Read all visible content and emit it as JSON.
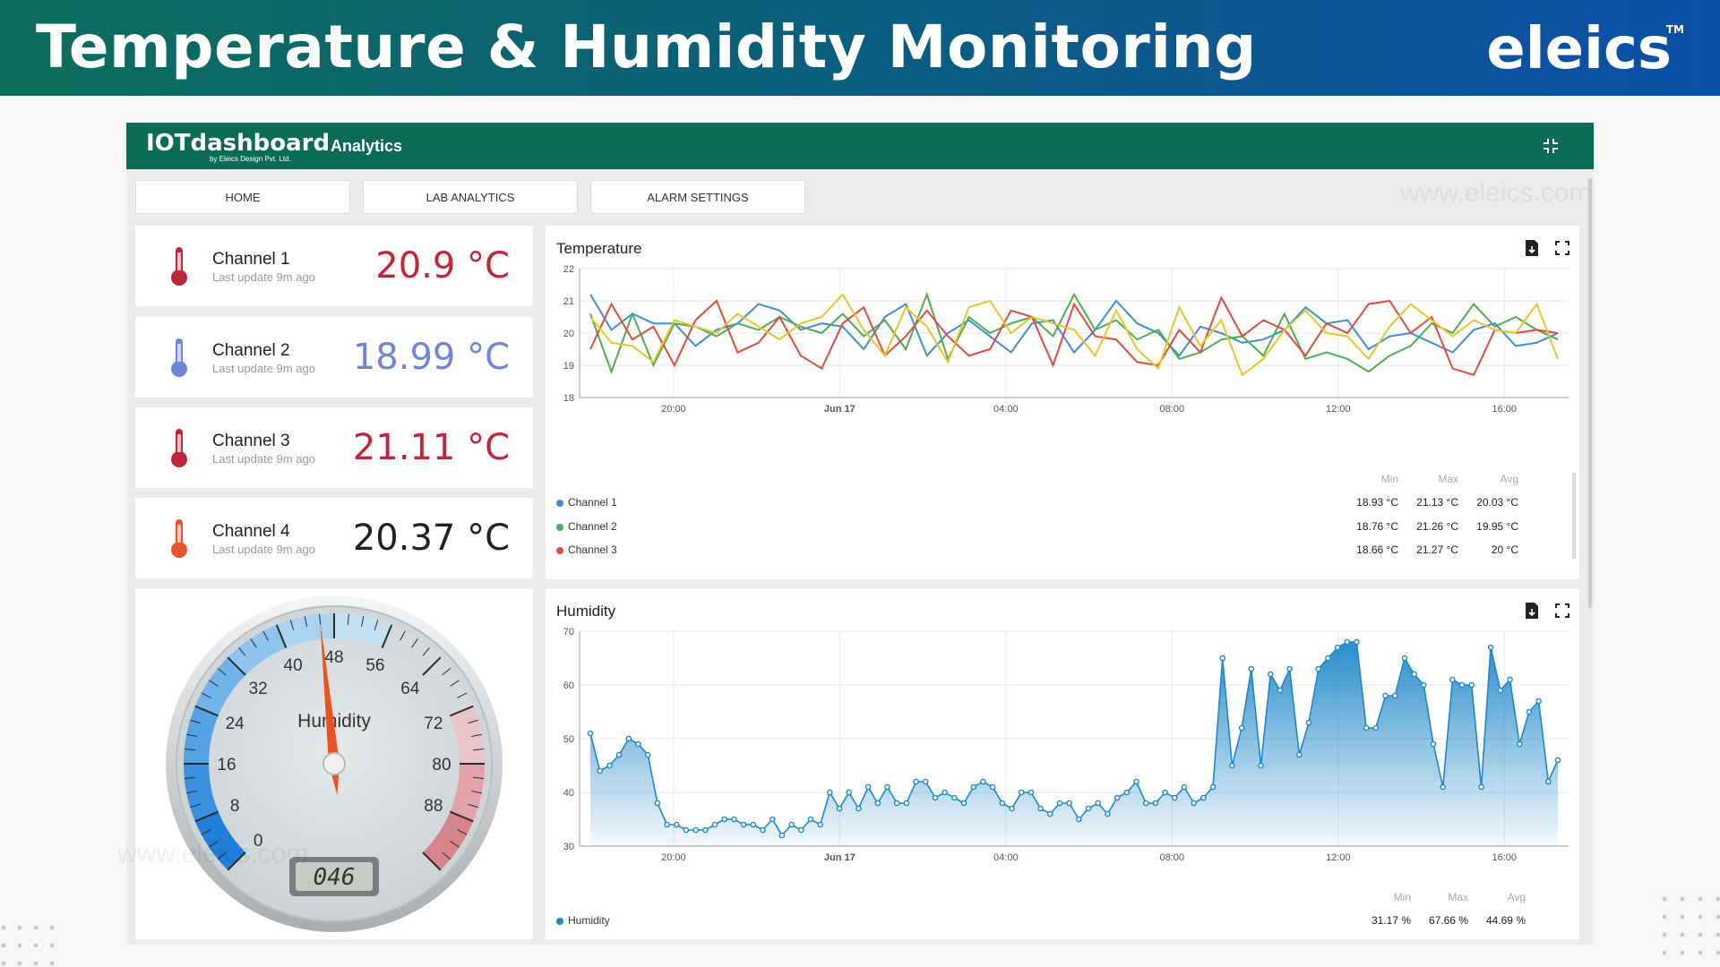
{
  "banner": {
    "title": "Temperature & Humidity Monitoring",
    "logo": "eleics",
    "tm": "TM"
  },
  "app": {
    "logo": "IOTdashboard",
    "logo_sub": "by Eleics Design Pvt. Ltd.",
    "title": "Analytics",
    "collapse_icon": "collapse-icon"
  },
  "nav": [
    {
      "label": "HOME"
    },
    {
      "label": "LAB ANALYTICS"
    },
    {
      "label": "ALARM SETTINGS"
    }
  ],
  "watermarks": [
    "www.eleics.com",
    "www.eleics.com"
  ],
  "channels": [
    {
      "name": "Channel 1",
      "update": "Last update 9m ago",
      "value": "20.9 °C",
      "color": "#c0263a"
    },
    {
      "name": "Channel 2",
      "update": "Last update 9m ago",
      "value": "18.99 °C",
      "color": "#6f86d4"
    },
    {
      "name": "Channel 3",
      "update": "Last update 9m ago",
      "value": "21.11 °C",
      "color": "#c0263a"
    },
    {
      "name": "Channel 4",
      "update": "Last update 9m ago",
      "value": "20.37 °C",
      "color": "#222222"
    }
  ],
  "gauge": {
    "label": "Humidity",
    "value": 46,
    "display": "046",
    "min": 0,
    "max": 96,
    "ticks": [
      "0",
      "8",
      "16",
      "24",
      "32",
      "40",
      "48",
      "56",
      "64",
      "72",
      "80",
      "88"
    ]
  },
  "temp_panel": {
    "title": "Temperature",
    "stat_headers": [
      "Min",
      "Max",
      "Avg"
    ],
    "legend": [
      {
        "name": "Channel 1",
        "color": "#3d8fd6",
        "min": "18.93 °C",
        "max": "21.13 °C",
        "avg": "20.03 °C"
      },
      {
        "name": "Channel 2",
        "color": "#4caf50",
        "min": "18.76 °C",
        "max": "21.26 °C",
        "avg": "19.95 °C"
      },
      {
        "name": "Channel 3",
        "color": "#e04b3f",
        "min": "18.66 °C",
        "max": "21.27 °C",
        "avg": "20 °C"
      }
    ]
  },
  "hum_panel": {
    "title": "Humidity",
    "stat_headers": [
      "Min",
      "Max",
      "Avg"
    ],
    "legend": [
      {
        "name": "Humidity",
        "color": "#1e88c8",
        "min": "31.17 %",
        "max": "67.66 %",
        "avg": "44.69 %"
      }
    ]
  },
  "chart_data": [
    {
      "type": "line",
      "title": "Temperature",
      "ylim": [
        18,
        22
      ],
      "yticks": [
        "18",
        "19",
        "20",
        "21",
        "22"
      ],
      "xticks": [
        "20:00",
        "Jun 17",
        "04:00",
        "08:00",
        "12:00",
        "16:00"
      ],
      "series": [
        {
          "name": "Channel 1",
          "color": "#3d8fd6",
          "values": [
            21.2,
            20.1,
            20.6,
            20.3,
            20.3,
            19.6,
            20.1,
            20.3,
            20.9,
            20.7,
            20.1,
            20.3,
            20.2,
            19.5,
            20.5,
            20.9,
            19.3,
            20.0,
            20.4,
            19.9,
            19.4,
            20.3,
            20.4,
            19.4,
            20.1,
            21.0,
            20.3,
            20.0,
            19.3,
            20.2,
            20.0,
            19.7,
            19.8,
            20.1,
            20.8,
            20.3,
            20.4,
            19.5,
            19.9,
            20.0,
            19.7,
            19.4,
            20.1,
            20.3,
            19.6,
            19.7,
            20.0
          ]
        },
        {
          "name": "Channel 2",
          "color": "#4caf50",
          "values": [
            20.6,
            18.8,
            20.6,
            19.0,
            20.3,
            20.2,
            19.9,
            20.3,
            20.1,
            20.5,
            20.2,
            20.0,
            20.6,
            19.9,
            20.4,
            19.5,
            21.2,
            19.2,
            20.5,
            20.0,
            20.3,
            20.5,
            19.9,
            21.2,
            20.1,
            20.4,
            19.8,
            20.1,
            19.2,
            19.4,
            19.8,
            19.9,
            19.3,
            20.6,
            19.2,
            19.4,
            19.2,
            18.8,
            19.3,
            19.6,
            20.3,
            20.0,
            20.9,
            20.2,
            20.5,
            20.1,
            19.8
          ]
        },
        {
          "name": "Channel 3",
          "color": "#e04b3f",
          "values": [
            19.5,
            20.9,
            19.8,
            20.2,
            19.0,
            20.4,
            21.0,
            19.4,
            19.7,
            20.5,
            19.3,
            18.9,
            20.3,
            20.8,
            19.3,
            19.9,
            20.7,
            19.9,
            19.3,
            19.5,
            20.7,
            20.5,
            19.0,
            20.9,
            19.9,
            19.8,
            19.1,
            19.0,
            20.1,
            19.4,
            21.1,
            19.9,
            20.4,
            20.1,
            19.3,
            20.3,
            20.0,
            20.9,
            21.0,
            20.0,
            20.5,
            18.9,
            18.7,
            20.1,
            20.0,
            20.1,
            20.0
          ]
        },
        {
          "name": "Channel 4",
          "color": "#e8c52a",
          "values": [
            20.5,
            19.7,
            19.6,
            19.1,
            20.4,
            20.2,
            20.0,
            20.6,
            20.2,
            19.8,
            20.3,
            20.5,
            21.2,
            20.1,
            19.3,
            20.8,
            20.2,
            19.1,
            20.8,
            21.0,
            20.0,
            20.5,
            20.3,
            20.1,
            19.3,
            20.7,
            19.5,
            18.9,
            20.8,
            19.6,
            20.4,
            18.7,
            19.2,
            20.1,
            20.7,
            20.0,
            19.9,
            19.2,
            20.2,
            20.9,
            20.4,
            19.9,
            20.4,
            20.1,
            20.0,
            20.9,
            19.2
          ]
        }
      ]
    },
    {
      "type": "area",
      "title": "Humidity",
      "ylim": [
        30,
        70
      ],
      "yticks": [
        "30",
        "40",
        "50",
        "60",
        "70"
      ],
      "xticks": [
        "20:00",
        "Jun 17",
        "04:00",
        "08:00",
        "12:00",
        "16:00"
      ],
      "series": [
        {
          "name": "Humidity",
          "color": "#1e88c8",
          "values": [
            51,
            44,
            45,
            47,
            50,
            49,
            47,
            38,
            34,
            34,
            33,
            33,
            33,
            34,
            35,
            35,
            34,
            34,
            33,
            35,
            32,
            34,
            33,
            35,
            34,
            40,
            37,
            40,
            37,
            41,
            38,
            41,
            38,
            38,
            42,
            42,
            39,
            40,
            39,
            38,
            41,
            42,
            41,
            38,
            37,
            40,
            40,
            37,
            36,
            38,
            38,
            35,
            37,
            38,
            36,
            39,
            40,
            42,
            38,
            38,
            40,
            39,
            41,
            38,
            39,
            41,
            65,
            45,
            52,
            63,
            45,
            62,
            59,
            63,
            47,
            53,
            63,
            65,
            67,
            68,
            68,
            52,
            52,
            58,
            58,
            65,
            62,
            60,
            49,
            41,
            61,
            60,
            60,
            41,
            67,
            59,
            61,
            49,
            55,
            57,
            42,
            46
          ]
        }
      ]
    }
  ]
}
